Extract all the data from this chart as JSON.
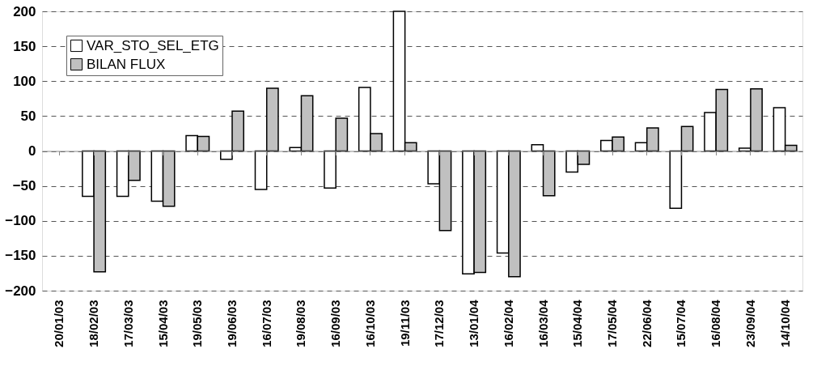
{
  "chart_data": {
    "type": "bar",
    "categories": [
      "20/01/03",
      "18/02/03",
      "17/03/03",
      "15/04/03",
      "19/05/03",
      "19/06/03",
      "16/07/03",
      "19/08/03",
      "16/09/03",
      "16/10/03",
      "19/11/03",
      "17/12/03",
      "13/01/04",
      "16/02/04",
      "16/03/04",
      "15/04/04",
      "17/05/04",
      "22/06/04",
      "15/07/04",
      "16/08/04",
      "23/09/04",
      "14/10/04"
    ],
    "series": [
      {
        "name": "VAR_STO_SEL_ETG",
        "color": "#ffffff",
        "values": [
          null,
          -65,
          -65,
          -72,
          22,
          -12,
          -55,
          5,
          -53,
          91,
          200,
          -47,
          -176,
          -146,
          9,
          -30,
          15,
          12,
          -82,
          55,
          4,
          62
        ]
      },
      {
        "name": "BILAN FLUX",
        "color": "#c0c0c0",
        "values": [
          null,
          -173,
          -42,
          -79,
          21,
          57,
          90,
          79,
          47,
          25,
          12,
          -114,
          -174,
          -180,
          -64,
          -19,
          20,
          33,
          35,
          88,
          89,
          8
        ]
      }
    ],
    "ylim": [
      -200,
      200
    ],
    "yticks": [
      -200,
      -150,
      -100,
      -50,
      0,
      50,
      100,
      150,
      200
    ],
    "grid": "y",
    "legend": "top left"
  }
}
